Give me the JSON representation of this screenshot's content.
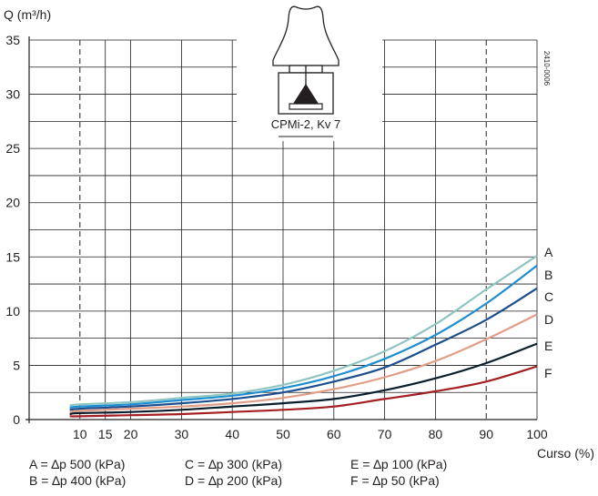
{
  "chart_data": {
    "type": "line",
    "ylabel": "Q (m³/h)",
    "xlabel": "Curso (%)",
    "xlim": [
      0,
      100
    ],
    "ylim": [
      0,
      35
    ],
    "x_ticks": [
      10,
      15,
      20,
      30,
      40,
      50,
      60,
      70,
      80,
      90,
      100
    ],
    "y_ticks": [
      0,
      5,
      10,
      15,
      20,
      25,
      30,
      35
    ],
    "dashed_x": [
      10,
      90
    ],
    "grid": true,
    "inset_label": "CPMi-2, Kv 7",
    "code": "2410-0006",
    "x": [
      8,
      10,
      20,
      30,
      40,
      50,
      60,
      70,
      80,
      90,
      100
    ],
    "series": [
      {
        "name": "A",
        "color": "#8ec5c0",
        "values": [
          1.3,
          1.4,
          1.6,
          2.0,
          2.4,
          3.2,
          4.5,
          6.3,
          8.8,
          12.0,
          15.1
        ]
      },
      {
        "name": "B",
        "color": "#1e8ed0",
        "values": [
          1.1,
          1.2,
          1.4,
          1.8,
          2.2,
          2.9,
          4.0,
          5.6,
          7.8,
          10.7,
          14.2
        ]
      },
      {
        "name": "C",
        "color": "#1d4e8e",
        "values": [
          0.9,
          1.0,
          1.2,
          1.5,
          1.9,
          2.5,
          3.5,
          4.8,
          6.9,
          9.2,
          12.1
        ]
      },
      {
        "name": "D",
        "color": "#e19e86",
        "values": [
          0.7,
          0.8,
          1.0,
          1.2,
          1.5,
          2.0,
          2.8,
          3.9,
          5.4,
          7.4,
          9.7
        ]
      },
      {
        "name": "E",
        "color": "#0a1d2b",
        "values": [
          0.5,
          0.6,
          0.7,
          0.9,
          1.2,
          1.5,
          1.9,
          2.7,
          3.8,
          5.2,
          7.0
        ]
      },
      {
        "name": "F",
        "color": "#a31f22",
        "values": [
          0.3,
          0.3,
          0.4,
          0.5,
          0.7,
          0.9,
          1.2,
          1.9,
          2.6,
          3.5,
          4.9
        ]
      }
    ]
  },
  "legend": [
    {
      "label": "A = ∆p 500 (kPa)"
    },
    {
      "label": "B = ∆p 400 (kPa)"
    },
    {
      "label": "C = ∆p 300 (kPa)"
    },
    {
      "label": "D = ∆p 200 (kPa)"
    },
    {
      "label": "E = ∆p 100 (kPa)"
    },
    {
      "label": "F = ∆p 50 (kPa)"
    }
  ]
}
